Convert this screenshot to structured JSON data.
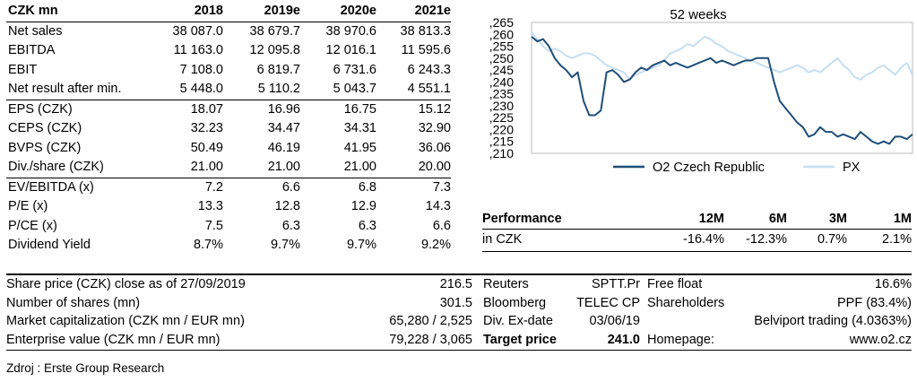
{
  "financials": {
    "headers": [
      "CZK mn",
      "2018",
      "2019e",
      "2020e",
      "2021e"
    ],
    "rows": [
      {
        "label": "Net sales",
        "values": [
          "38 087.0",
          "38 679.7",
          "38 970.6",
          "38 813.3"
        ]
      },
      {
        "label": "EBITDA",
        "values": [
          "11 163.0",
          "12 095.8",
          "12 016.1",
          "11 595.6"
        ]
      },
      {
        "label": "EBIT",
        "values": [
          "7 108.0",
          "6 819.7",
          "6 731.6",
          "6 243.3"
        ]
      },
      {
        "label": "Net result after min.",
        "values": [
          "5 448.0",
          "5 110.2",
          "5 043.7",
          "4 551.1"
        ]
      },
      {
        "label": "EPS (CZK)",
        "values": [
          "18.07",
          "16.96",
          "16.75",
          "15.12"
        ]
      },
      {
        "label": "CEPS (CZK)",
        "values": [
          "32.23",
          "34.47",
          "34.31",
          "32.90"
        ]
      },
      {
        "label": "BVPS (CZK)",
        "values": [
          "50.49",
          "46.19",
          "41.95",
          "36.06"
        ]
      },
      {
        "label": "Div./share (CZK)",
        "values": [
          "21.00",
          "21.00",
          "21.00",
          "20.00"
        ]
      },
      {
        "label": "EV/EBITDA (x)",
        "values": [
          "7.2",
          "6.6",
          "6.8",
          "7.3"
        ]
      },
      {
        "label": "P/E (x)",
        "values": [
          "13.3",
          "12.8",
          "12.9",
          "14.3"
        ]
      },
      {
        "label": "P/CE (x)",
        "values": [
          "7.5",
          "6.3",
          "6.3",
          "6.6"
        ]
      },
      {
        "label": "Dividend Yield",
        "values": [
          "8.7%",
          "9.7%",
          "9.7%",
          "9.2%"
        ]
      }
    ]
  },
  "chart_data": {
    "type": "line",
    "title": "52 weeks",
    "ylim": [
      210,
      265
    ],
    "yticks": [
      ",265",
      ",260",
      ",255",
      ",250",
      ",245",
      ",240",
      ",235",
      ",230",
      ",225",
      ",220",
      ",215",
      ",210"
    ],
    "ytick_values": [
      265,
      260,
      255,
      250,
      245,
      240,
      235,
      230,
      225,
      220,
      215,
      210
    ],
    "series": [
      {
        "name": "O2 Czech Republic",
        "color": "#1f4e79",
        "values": [
          259,
          257,
          258,
          255,
          250,
          247,
          245,
          242,
          244,
          232,
          226,
          226,
          228,
          244,
          245,
          243,
          240,
          241,
          244,
          246,
          245,
          247,
          248,
          249,
          247,
          248,
          247,
          246,
          247,
          248,
          249,
          250,
          248,
          249,
          248,
          247,
          248,
          249,
          249,
          250,
          250,
          250,
          240,
          232,
          229,
          226,
          223,
          221,
          217,
          218,
          221,
          219,
          219,
          217,
          218,
          217,
          216,
          219,
          217,
          215,
          214,
          215,
          214,
          217,
          217,
          216,
          218
        ]
      },
      {
        "name": "PX",
        "color": "#c5dff2",
        "values": [
          261,
          258,
          255,
          253,
          254,
          253,
          251,
          250,
          251,
          252,
          252,
          251,
          249,
          247,
          246,
          245,
          244,
          241,
          243,
          244,
          245,
          246,
          247,
          249,
          252,
          253,
          254,
          256,
          255,
          257,
          259,
          258,
          256,
          255,
          253,
          252,
          251,
          250,
          249,
          248,
          247,
          246,
          245,
          244,
          245,
          246,
          247,
          246,
          244,
          245,
          244,
          246,
          248,
          250,
          247,
          245,
          242,
          241,
          243,
          244,
          246,
          247,
          245,
          243,
          246,
          248,
          243
        ]
      }
    ],
    "legend_position": "bottom"
  },
  "performance": {
    "title": "Performance",
    "headers": [
      "12M",
      "6M",
      "3M",
      "1M"
    ],
    "row_label": "in CZK",
    "values": [
      "-16.4%",
      "-12.3%",
      "0.7%",
      "2.1%"
    ]
  },
  "info": {
    "share_price_label": "Share price (CZK) close as of 27/09/2019",
    "share_price": "216.5",
    "shares_label": "Number of shares (mn)",
    "shares": "301.5",
    "mcap_label": "Market capitalization (CZK mn / EUR mn)",
    "mcap": "65,280 / 2,525",
    "ev_label": "Enterprise value (CZK mn / EUR mn)",
    "ev": "79,228 / 3,065",
    "reuters_label": "Reuters",
    "reuters": "SPTT.Pr",
    "bloomberg_label": "Bloomberg",
    "bloomberg": "TELEC CP",
    "exdate_label": "Div. Ex-date",
    "exdate": "03/06/19",
    "target_label": "Target price",
    "target": "241.0",
    "freefloat_label": "Free float",
    "freefloat": "16.6%",
    "shareholders_label": "Shareholders",
    "shareholder1": "PPF (83.4%)",
    "shareholder2": "Belviport trading (4.0363%)",
    "homepage_label": "Homepage:",
    "homepage": "www.o2.cz"
  },
  "source": "Zdroj : Erste Group Research"
}
